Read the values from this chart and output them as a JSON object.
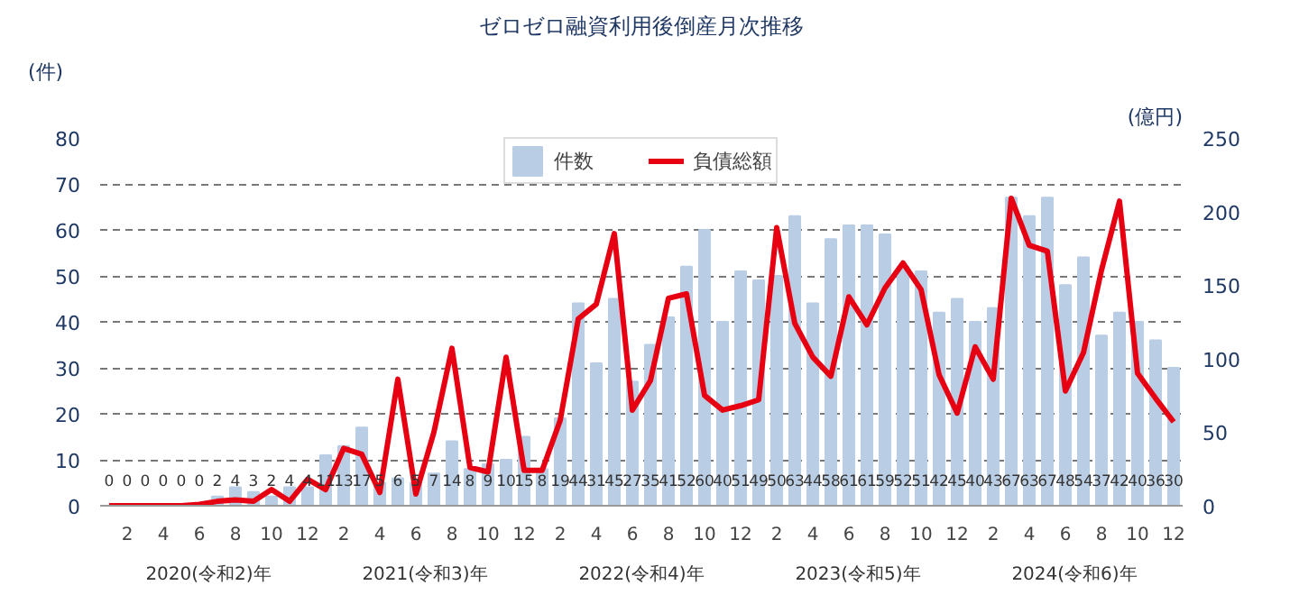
{
  "chart_data": {
    "type": "bar",
    "title": "ゼロゼロ融資利用後倒産月次推移",
    "ylabel": "(件)",
    "y2label": "(億円)",
    "categories": [
      null,
      "2",
      null,
      "4",
      null,
      "6",
      null,
      "8",
      null,
      "10",
      null,
      "12",
      null,
      "2",
      null,
      "4",
      null,
      "6",
      null,
      "8",
      null,
      "10",
      null,
      "12",
      null,
      "2",
      null,
      "4",
      null,
      "6",
      null,
      "8",
      null,
      "10",
      null,
      "12",
      null,
      "2",
      null,
      "4",
      null,
      "6",
      null,
      "8",
      null,
      "10",
      null,
      "12",
      null,
      "2",
      null,
      "4",
      null,
      "6",
      null,
      "8",
      null,
      "10",
      null,
      "12"
    ],
    "series": [
      {
        "name": "件数",
        "color": "#b9cde5",
        "data_labels": true,
        "values": [
          0,
          0,
          0,
          0,
          0,
          0,
          2,
          4,
          3,
          2,
          4,
          4,
          11,
          13,
          17,
          5,
          6,
          5,
          7,
          14,
          8,
          9,
          10,
          15,
          8,
          19,
          44,
          31,
          45,
          27,
          35,
          41,
          52,
          60,
          40,
          51,
          49,
          50,
          63,
          44,
          58,
          61,
          61,
          59,
          52,
          51,
          42,
          45,
          40,
          43,
          67,
          63,
          67,
          48,
          54,
          37,
          42,
          40,
          36,
          30
        ]
      },
      {
        "name": "負債総額",
        "type": "line",
        "axis": "y2",
        "color": "#e60012",
        "values": [
          0,
          0,
          0,
          0,
          0,
          1,
          3,
          4,
          3,
          11,
          3,
          18,
          11,
          39,
          35,
          9,
          86,
          8,
          50,
          107,
          26,
          23,
          101,
          24,
          24,
          58,
          127,
          137,
          185,
          65,
          85,
          141,
          144,
          75,
          65,
          68,
          72,
          189,
          124,
          101,
          88,
          142,
          123,
          148,
          165,
          147,
          89,
          63,
          108,
          86,
          209,
          177,
          173,
          78,
          104,
          160,
          207,
          90,
          73,
          57
        ]
      }
    ],
    "ylim": [
      0,
      80
    ],
    "yticks": [
      0,
      10,
      20,
      30,
      40,
      50,
      60,
      70,
      80
    ],
    "y2lim": [
      0,
      250
    ],
    "y2ticks": [
      0,
      50,
      100,
      150,
      200,
      250
    ],
    "grid": "y",
    "legend": "top",
    "line_style": "solid",
    "marker": "none",
    "annotations": [
      "2020(令和2)年",
      "2021(令和3)年",
      "2022(令和4)年",
      "2023(令和5)年",
      "2024(令和6)年"
    ]
  }
}
